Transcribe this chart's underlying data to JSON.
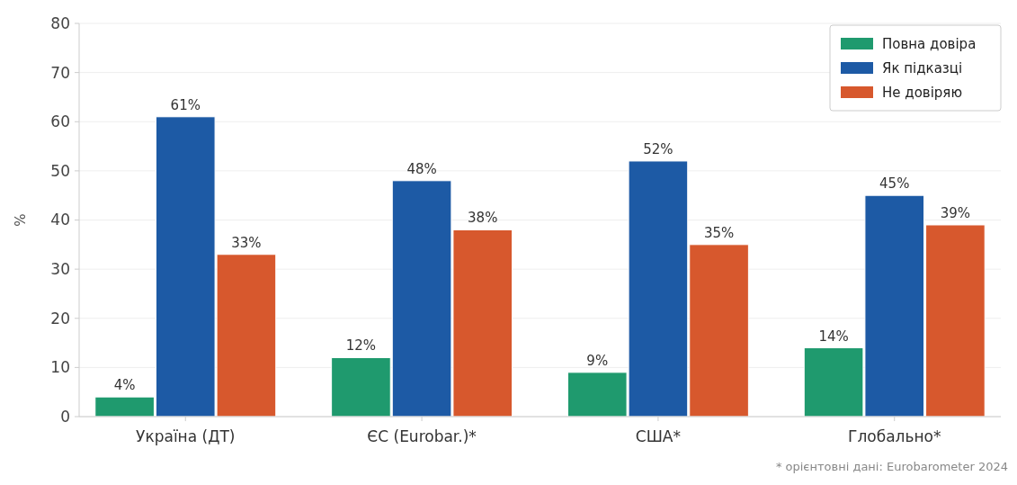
{
  "chart_data": {
    "type": "bar",
    "ylabel": "%",
    "categories": [
      "Україна (ДТ)",
      "ЄС (Eurobar.)*",
      "США*",
      "Глобально*"
    ],
    "series": [
      {
        "name": "Повна довіра",
        "color": "#1f9a6e",
        "values": [
          4,
          12,
          9,
          14
        ],
        "value_labels": [
          "4%",
          "12%",
          "9%",
          "14%"
        ]
      },
      {
        "name": "Як підказці",
        "color": "#1d5aa5",
        "values": [
          61,
          48,
          52,
          45
        ],
        "value_labels": [
          "61%",
          "48%",
          "52%",
          "45%"
        ]
      },
      {
        "name": "Не довіряю",
        "color": "#d7582d",
        "values": [
          33,
          38,
          35,
          39
        ],
        "value_labels": [
          "33%",
          "38%",
          "35%",
          "39%"
        ]
      }
    ],
    "ylim": [
      0,
      80
    ],
    "yticks": [
      0,
      10,
      20,
      30,
      40,
      50,
      60,
      70,
      80
    ],
    "grid": "y",
    "legend": "top right",
    "annotations": [
      "* орієнтовні дані: Eurobarometer 2024"
    ]
  }
}
